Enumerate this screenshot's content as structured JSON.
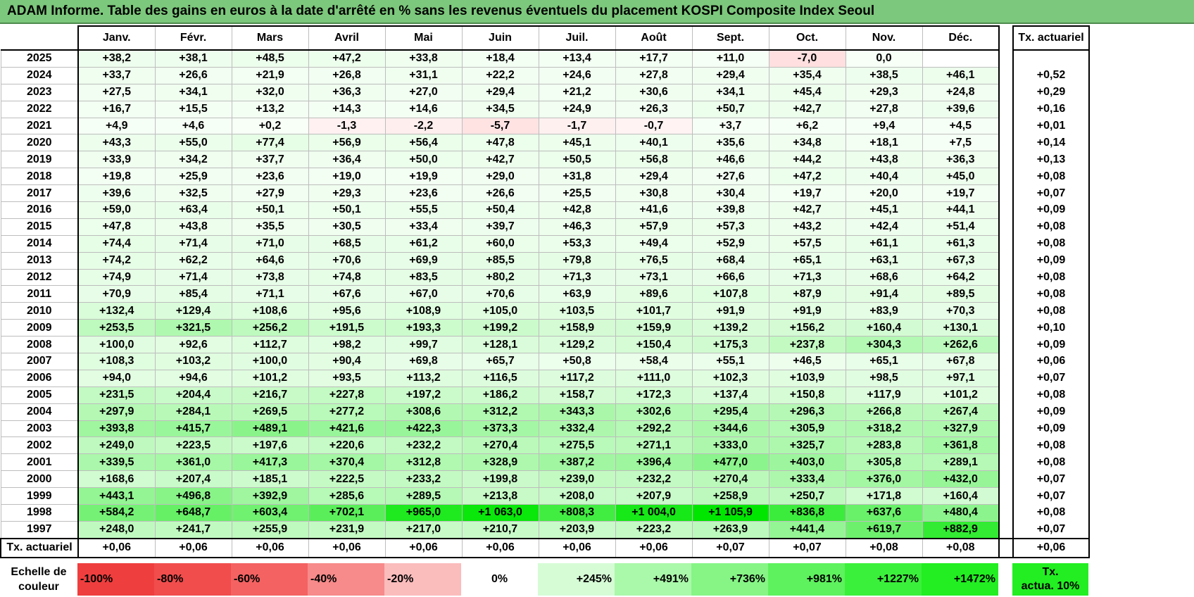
{
  "title": "ADAM Informe. Table des gains en euros à la date d'arrêté en % sans les revenus éventuels du placement KOSPI Composite Index Seoul",
  "months": [
    "Janv.",
    "Févr.",
    "Mars",
    "Avril",
    "Mai",
    "Juin",
    "Juil.",
    "Août",
    "Sept.",
    "Oct.",
    "Nov.",
    "Déc."
  ],
  "tx_header": "Tx. actuariel",
  "rows": [
    {
      "year": "2025",
      "values": [
        "+38,2",
        "+38,1",
        "+48,5",
        "+47,2",
        "+33,8",
        "+18,4",
        "+13,4",
        "+17,7",
        "+11,0",
        "-7,0",
        "0,0",
        ""
      ],
      "tx": ""
    },
    {
      "year": "2024",
      "values": [
        "+33,7",
        "+26,6",
        "+21,9",
        "+26,8",
        "+31,1",
        "+22,2",
        "+24,6",
        "+27,8",
        "+29,4",
        "+35,4",
        "+38,5",
        "+46,1"
      ],
      "tx": "+0,52"
    },
    {
      "year": "2023",
      "values": [
        "+27,5",
        "+34,1",
        "+32,0",
        "+36,3",
        "+27,0",
        "+29,4",
        "+21,2",
        "+30,6",
        "+34,1",
        "+45,4",
        "+29,3",
        "+24,8"
      ],
      "tx": "+0,29"
    },
    {
      "year": "2022",
      "values": [
        "+16,7",
        "+15,5",
        "+13,2",
        "+14,3",
        "+14,6",
        "+34,5",
        "+24,9",
        "+26,3",
        "+50,7",
        "+42,7",
        "+27,8",
        "+39,6"
      ],
      "tx": "+0,16"
    },
    {
      "year": "2021",
      "values": [
        "+4,9",
        "+4,6",
        "+0,2",
        "-1,3",
        "-2,2",
        "-5,7",
        "-1,7",
        "-0,7",
        "+3,7",
        "+6,2",
        "+9,4",
        "+4,5"
      ],
      "tx": "+0,01"
    },
    {
      "year": "2020",
      "values": [
        "+43,3",
        "+55,0",
        "+77,4",
        "+56,9",
        "+56,4",
        "+47,8",
        "+45,1",
        "+40,1",
        "+35,6",
        "+34,8",
        "+18,1",
        "+7,5"
      ],
      "tx": "+0,14"
    },
    {
      "year": "2019",
      "values": [
        "+33,9",
        "+34,2",
        "+37,7",
        "+36,4",
        "+50,0",
        "+42,7",
        "+50,5",
        "+56,8",
        "+46,6",
        "+44,2",
        "+43,8",
        "+36,3"
      ],
      "tx": "+0,13"
    },
    {
      "year": "2018",
      "values": [
        "+19,8",
        "+25,9",
        "+23,6",
        "+19,0",
        "+19,9",
        "+29,0",
        "+31,8",
        "+29,4",
        "+27,6",
        "+47,2",
        "+40,4",
        "+45,0"
      ],
      "tx": "+0,08"
    },
    {
      "year": "2017",
      "values": [
        "+39,6",
        "+32,5",
        "+27,9",
        "+29,3",
        "+23,6",
        "+26,6",
        "+25,5",
        "+30,8",
        "+30,4",
        "+19,7",
        "+20,0",
        "+19,7"
      ],
      "tx": "+0,07"
    },
    {
      "year": "2016",
      "values": [
        "+59,0",
        "+63,4",
        "+50,1",
        "+50,1",
        "+55,5",
        "+50,4",
        "+42,8",
        "+41,6",
        "+39,8",
        "+42,7",
        "+45,1",
        "+44,1"
      ],
      "tx": "+0,09"
    },
    {
      "year": "2015",
      "values": [
        "+47,8",
        "+43,8",
        "+35,5",
        "+30,5",
        "+33,4",
        "+39,7",
        "+46,3",
        "+57,9",
        "+57,3",
        "+43,2",
        "+42,4",
        "+51,4"
      ],
      "tx": "+0,08"
    },
    {
      "year": "2014",
      "values": [
        "+74,4",
        "+71,4",
        "+71,0",
        "+68,5",
        "+61,2",
        "+60,0",
        "+53,3",
        "+49,4",
        "+52,9",
        "+57,5",
        "+61,1",
        "+61,3"
      ],
      "tx": "+0,08"
    },
    {
      "year": "2013",
      "values": [
        "+74,2",
        "+62,2",
        "+64,6",
        "+70,6",
        "+69,9",
        "+85,5",
        "+79,8",
        "+76,5",
        "+68,4",
        "+65,1",
        "+63,1",
        "+67,3"
      ],
      "tx": "+0,09"
    },
    {
      "year": "2012",
      "values": [
        "+74,9",
        "+71,4",
        "+73,8",
        "+74,8",
        "+83,5",
        "+80,2",
        "+71,3",
        "+73,1",
        "+66,6",
        "+71,3",
        "+68,6",
        "+64,2"
      ],
      "tx": "+0,08"
    },
    {
      "year": "2011",
      "values": [
        "+70,9",
        "+85,4",
        "+71,1",
        "+67,6",
        "+67,0",
        "+70,6",
        "+63,9",
        "+89,6",
        "+107,8",
        "+87,9",
        "+91,4",
        "+89,5"
      ],
      "tx": "+0,08"
    },
    {
      "year": "2010",
      "values": [
        "+132,4",
        "+129,4",
        "+108,6",
        "+95,6",
        "+108,9",
        "+105,0",
        "+103,5",
        "+101,7",
        "+91,9",
        "+91,9",
        "+83,9",
        "+70,3"
      ],
      "tx": "+0,08"
    },
    {
      "year": "2009",
      "values": [
        "+253,5",
        "+321,5",
        "+256,2",
        "+191,5",
        "+193,3",
        "+199,2",
        "+158,9",
        "+159,9",
        "+139,2",
        "+156,2",
        "+160,4",
        "+130,1"
      ],
      "tx": "+0,10"
    },
    {
      "year": "2008",
      "values": [
        "+100,0",
        "+92,6",
        "+112,7",
        "+98,2",
        "+99,7",
        "+128,1",
        "+129,2",
        "+150,4",
        "+175,3",
        "+237,8",
        "+304,3",
        "+262,6"
      ],
      "tx": "+0,09"
    },
    {
      "year": "2007",
      "values": [
        "+108,3",
        "+103,2",
        "+100,0",
        "+90,4",
        "+69,8",
        "+65,7",
        "+50,8",
        "+58,4",
        "+55,1",
        "+46,5",
        "+65,1",
        "+67,8"
      ],
      "tx": "+0,06"
    },
    {
      "year": "2006",
      "values": [
        "+94,0",
        "+94,6",
        "+101,2",
        "+93,5",
        "+113,2",
        "+116,5",
        "+117,2",
        "+111,0",
        "+102,3",
        "+103,9",
        "+98,5",
        "+97,1"
      ],
      "tx": "+0,07"
    },
    {
      "year": "2005",
      "values": [
        "+231,5",
        "+204,4",
        "+216,7",
        "+227,8",
        "+197,2",
        "+186,2",
        "+158,7",
        "+172,3",
        "+137,4",
        "+150,8",
        "+117,9",
        "+101,2"
      ],
      "tx": "+0,08"
    },
    {
      "year": "2004",
      "values": [
        "+297,9",
        "+284,1",
        "+269,5",
        "+277,2",
        "+308,6",
        "+312,2",
        "+343,3",
        "+302,6",
        "+295,4",
        "+296,3",
        "+266,8",
        "+267,4"
      ],
      "tx": "+0,09"
    },
    {
      "year": "2003",
      "values": [
        "+393,8",
        "+415,7",
        "+489,1",
        "+421,6",
        "+422,3",
        "+373,3",
        "+332,4",
        "+292,2",
        "+344,6",
        "+305,9",
        "+318,2",
        "+327,9"
      ],
      "tx": "+0,09"
    },
    {
      "year": "2002",
      "values": [
        "+249,0",
        "+223,5",
        "+197,6",
        "+220,6",
        "+232,2",
        "+270,4",
        "+275,5",
        "+271,1",
        "+333,0",
        "+325,7",
        "+283,8",
        "+361,8"
      ],
      "tx": "+0,08"
    },
    {
      "year": "2001",
      "values": [
        "+339,5",
        "+361,0",
        "+417,3",
        "+370,4",
        "+312,8",
        "+328,9",
        "+387,2",
        "+396,4",
        "+477,0",
        "+403,0",
        "+305,8",
        "+289,1"
      ],
      "tx": "+0,08"
    },
    {
      "year": "2000",
      "values": [
        "+168,6",
        "+207,4",
        "+185,1",
        "+222,5",
        "+233,2",
        "+199,8",
        "+239,0",
        "+232,2",
        "+270,4",
        "+333,4",
        "+376,0",
        "+432,0"
      ],
      "tx": "+0,07"
    },
    {
      "year": "1999",
      "values": [
        "+443,1",
        "+496,8",
        "+392,9",
        "+285,6",
        "+289,5",
        "+213,8",
        "+208,0",
        "+207,9",
        "+258,9",
        "+250,7",
        "+171,8",
        "+160,4"
      ],
      "tx": "+0,07"
    },
    {
      "year": "1998",
      "values": [
        "+584,2",
        "+648,7",
        "+603,4",
        "+702,1",
        "+965,0",
        "+1 063,0",
        "+808,3",
        "+1 004,0",
        "+1 105,9",
        "+836,8",
        "+637,6",
        "+480,4"
      ],
      "tx": "+0,08"
    },
    {
      "year": "1997",
      "values": [
        "+248,0",
        "+241,7",
        "+255,9",
        "+231,9",
        "+217,0",
        "+210,7",
        "+203,9",
        "+223,2",
        "+263,9",
        "+441,4",
        "+619,7",
        "+882,9"
      ],
      "tx": "+0,07"
    }
  ],
  "avg_row": {
    "label": "Tx. actuariel",
    "values": [
      "+0,06",
      "+0,06",
      "+0,06",
      "+0,06",
      "+0,06",
      "+0,06",
      "+0,06",
      "+0,06",
      "+0,07",
      "+0,07",
      "+0,08",
      "+0,08"
    ],
    "tx": "+0,06"
  },
  "legend": {
    "label_line1": "Echelle de",
    "label_line2": "couleur",
    "cells": [
      {
        "text": "-100%",
        "color": "#ef3e3e",
        "align": "left"
      },
      {
        "text": "-80%",
        "color": "#f14d4d",
        "align": "left"
      },
      {
        "text": "-60%",
        "color": "#f46262",
        "align": "left"
      },
      {
        "text": "-40%",
        "color": "#f78a8a",
        "align": "left"
      },
      {
        "text": "-20%",
        "color": "#fbbcbc",
        "align": "left"
      },
      {
        "text": "0%",
        "color": "#ffffff",
        "align": "center"
      },
      {
        "text": "+245%",
        "color": "#d6fcd6",
        "align": "right"
      },
      {
        "text": "+491%",
        "color": "#aaf8aa",
        "align": "right"
      },
      {
        "text": "+736%",
        "color": "#86f586",
        "align": "right"
      },
      {
        "text": "+981%",
        "color": "#5ef25e",
        "align": "right"
      },
      {
        "text": "+1227%",
        "color": "#3bf03b",
        "align": "right"
      },
      {
        "text": "+1472%",
        "color": "#22ee22",
        "align": "right"
      }
    ],
    "tx_line1": "Tx.",
    "tx_line2": "actua. 10%",
    "tx_color": "#22ee22"
  },
  "colors": {
    "title_bg": "#7cc87c",
    "negative": "#ff0000",
    "positive": "#00e600"
  }
}
